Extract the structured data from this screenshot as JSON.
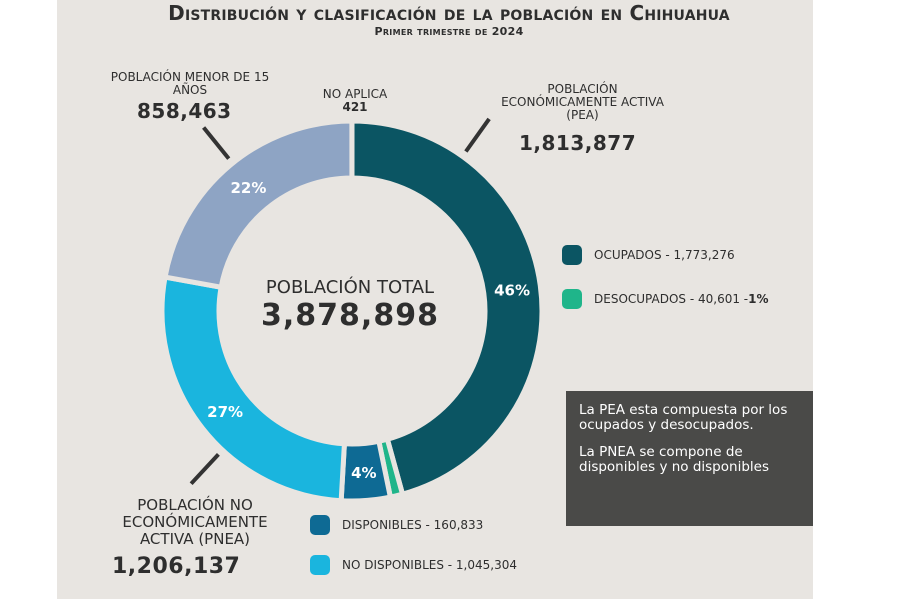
{
  "title": "Distribución y clasificación de la población en Chihuahua",
  "subtitle": "Primer trimestre de 2024",
  "center": {
    "label": "POBLACIÓN TOTAL",
    "value": "3,878,898"
  },
  "labels": {
    "pea": {
      "name": "POBLACIÓN ECONÓMICAMENTE ACTIVA (PEA)",
      "value": "1,813,877"
    },
    "menor": {
      "name": "POBLACIÓN MENOR DE 15 AÑOS",
      "value": "858,463"
    },
    "no_aplica": {
      "name": "NO APLICA",
      "value": "421"
    },
    "pnea": {
      "name": "POBLACIÓN NO ECONÓMICAMENTE ACTIVA (PNEA)",
      "value": "1,206,137"
    }
  },
  "legend": {
    "ocupados": {
      "label": "OCUPADOS - 1,773,276",
      "color": "#0b5563"
    },
    "desocupados": {
      "label": "DESOCUPADOS - 40,601 - ",
      "pct": "1%",
      "color": "#1fb58a"
    },
    "disponibles": {
      "label": "DISPONIBLES - 160,833",
      "color": "#0e6a94"
    },
    "no_disponibles": {
      "label": "NO DISPONIBLES - 1,045,304",
      "color": "#1ab5de"
    }
  },
  "note": {
    "p1": "La PEA esta compuesta por los ocupados y desocupados.",
    "p2": "La PNEA se compone de disponibles y no disponibles"
  },
  "chart_data": {
    "type": "pie",
    "total": 3878898,
    "slices": [
      {
        "name": "OCUPADOS",
        "value": 1773276,
        "label": "46%",
        "color": "#0b5563"
      },
      {
        "name": "DESOCUPADOS",
        "value": 40601,
        "label": "",
        "color": "#1fb58a"
      },
      {
        "name": "DISPONIBLES",
        "value": 160833,
        "label": "4%",
        "color": "#0e6a94"
      },
      {
        "name": "NO DISPONIBLES",
        "value": 1045304,
        "label": "27%",
        "color": "#1ab5de"
      },
      {
        "name": "POBLACIÓN MENOR DE 15 AÑOS",
        "value": 858463,
        "label": "22%",
        "color": "#8ea4c4"
      },
      {
        "name": "NO APLICA",
        "value": 421,
        "label": "",
        "color": "#8ea4c4"
      }
    ]
  }
}
